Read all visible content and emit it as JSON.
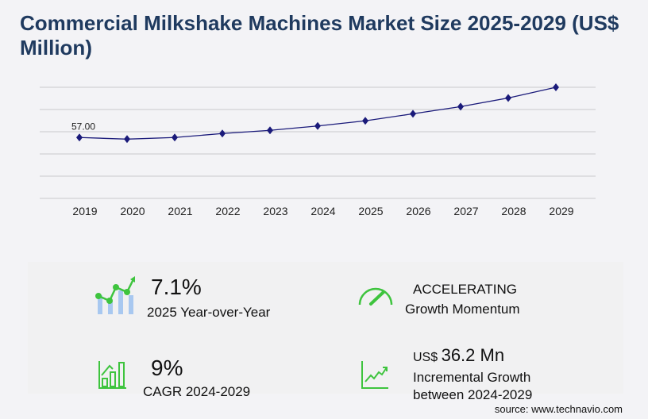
{
  "title": "Commercial Milkshake Machines Market Size 2025-2029 (US$ Million)",
  "chart_data": {
    "type": "line",
    "title": "Commercial Milkshake Machines Market Size 2025-2029 (US$ Million)",
    "categories": [
      "2019",
      "2020",
      "2021",
      "2022",
      "2023",
      "2024",
      "2025",
      "2026",
      "2027",
      "2028",
      "2029"
    ],
    "values": [
      57.0,
      55.5,
      57.0,
      60.7,
      63.7,
      67.8,
      72.6,
      79.2,
      85.9,
      94.0,
      104.0
    ],
    "data_labels": [
      {
        "category": "2019",
        "text": "57.00"
      }
    ],
    "ylim": [
      0,
      104
    ],
    "grid": true,
    "line_color": "#1a1a7a"
  },
  "stats": {
    "yoy_value": "7.1%",
    "yoy_label": "2025 Year-over-Year",
    "momentum_value": "ACCELERATING",
    "momentum_label": "Growth Momentum",
    "cagr_value": "9%",
    "cagr_label": "CAGR 2024-2029",
    "incr_prefix": "US$",
    "incr_value": "36.2 Mn",
    "incr_label1": "Incremental Growth",
    "incr_label2": "between 2024-2029"
  },
  "icons": [
    "chart-growth-icon",
    "speedometer-icon",
    "bar-chart-icon",
    "line-trend-icon"
  ],
  "accent": "#3ec43e",
  "source": "source: www.technavio.com"
}
